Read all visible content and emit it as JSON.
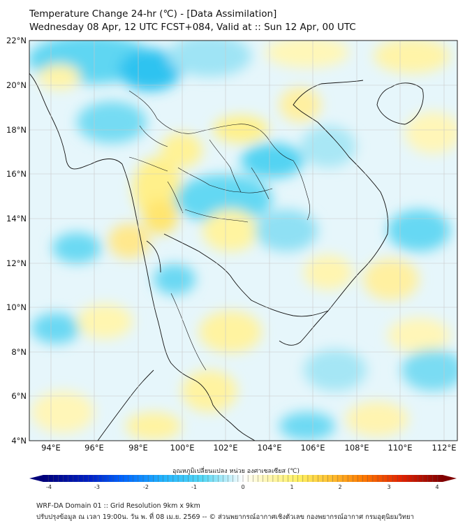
{
  "header": {
    "title_line1": "Temperature Change 24-hr (℃) - [Data Assimilation]",
    "title_line2": "Wednesday 08 Apr, 12 UTC FCST+084, Valid at :: Sun 12 Apr, 00 UTC"
  },
  "map": {
    "lon_ticks": [
      "94°E",
      "96°E",
      "98°E",
      "100°E",
      "102°E",
      "104°E",
      "106°E",
      "108°E",
      "110°E",
      "112°E"
    ],
    "lat_ticks": [
      "22°N",
      "20°N",
      "18°N",
      "16°N",
      "14°N",
      "12°N",
      "10°N",
      "8°N",
      "6°N",
      "4°N"
    ]
  },
  "colorbar": {
    "title": "อุณหภูมิเปลี่ยนแปลง หน่วย องศาเซลเซียส (℃)",
    "labels": [
      "-4",
      "-3",
      "-2",
      "-1",
      "0",
      "1",
      "2",
      "3",
      "4"
    ],
    "colors": [
      "#00007a",
      "#0022c8",
      "#0066ff",
      "#22b4ff",
      "#55d8f5",
      "#c8f0fa",
      "#ffffff",
      "#fff8c0",
      "#fff060",
      "#ffc030",
      "#ff7a00",
      "#e02000",
      "#800000"
    ]
  },
  "footer": {
    "line1": "WRF-DA Domain 01 :: Grid Resolution 9km x 9km",
    "line2": "ปรับปรุงข้อมูล ณ เวลา 19:00น. วัน พ. ที่ 08 เม.ย. 2569 -- © ส่วนพยากรณ์อากาศเชิงตัวเลข กองพยากรณ์อากาศ กรมอุตุนิยมวิทยา"
  }
}
